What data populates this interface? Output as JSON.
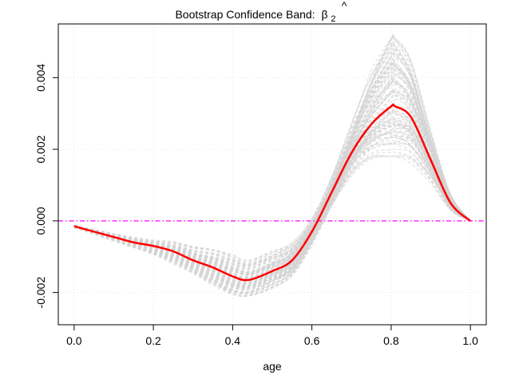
{
  "chart_data": {
    "type": "line",
    "title": "Bootstrap Confidence Band:",
    "title_math": {
      "base": "β",
      "accent": "^",
      "subscript": "2"
    },
    "xlabel": "age",
    "ylabel": "",
    "xlim": [
      -0.04,
      1.04
    ],
    "ylim": [
      -0.0029,
      0.0055
    ],
    "x_ticks": [
      0.0,
      0.2,
      0.4,
      0.6,
      0.8,
      1.0
    ],
    "x_tick_labels": [
      "0.0",
      "0.2",
      "0.4",
      "0.6",
      "0.8",
      "1.0"
    ],
    "y_ticks": [
      -0.002,
      0.0,
      0.002,
      0.004
    ],
    "y_tick_labels": [
      "-0.002",
      "0.000",
      "0.002",
      "0.004"
    ],
    "grid": true,
    "colors": {
      "estimate": "#ff0000",
      "bootstrap": "#d3d3d3",
      "reference": "#ff00ff",
      "grid": "#e6e6e6",
      "frame": "#000000"
    },
    "reference_line": {
      "y": 0.0,
      "style": "dash-dot"
    },
    "series": [
      {
        "role": "estimate",
        "style": "solid",
        "x": [
          0.0,
          0.05,
          0.1,
          0.15,
          0.2,
          0.25,
          0.3,
          0.35,
          0.4,
          0.44,
          0.5,
          0.55,
          0.6,
          0.65,
          0.7,
          0.75,
          0.8,
          0.81,
          0.85,
          0.9,
          0.95,
          1.0
        ],
        "y": [
          -0.00015,
          -0.0003,
          -0.00045,
          -0.0006,
          -0.0007,
          -0.00085,
          -0.0011,
          -0.0013,
          -0.00155,
          -0.00165,
          -0.0014,
          -0.0011,
          -0.0003,
          0.0008,
          0.0019,
          0.0027,
          0.0032,
          0.0032,
          0.0029,
          0.0017,
          0.0005,
          0.0
        ]
      }
    ],
    "bootstrap": {
      "count": 100,
      "style": "dashed",
      "band_lower": [
        -0.0002,
        -0.0004,
        -0.0006,
        -0.0008,
        -0.001,
        -0.00125,
        -0.0015,
        -0.0018,
        -0.00205,
        -0.0021,
        -0.0019,
        -0.0016,
        -0.0008,
        0.0002,
        0.0011,
        0.0017,
        0.0018,
        0.0018,
        0.0016,
        0.0009,
        0.0002,
        0.0
      ],
      "band_upper": [
        -0.0001,
        -0.0002,
        -0.0003,
        -0.0004,
        -0.0005,
        -0.00055,
        -0.0007,
        -0.0008,
        -0.00095,
        -0.0011,
        -0.0008,
        -0.0005,
        0.0002,
        0.0014,
        0.0029,
        0.0042,
        0.0051,
        0.0051,
        0.0045,
        0.0027,
        0.0009,
        0.0
      ]
    }
  }
}
